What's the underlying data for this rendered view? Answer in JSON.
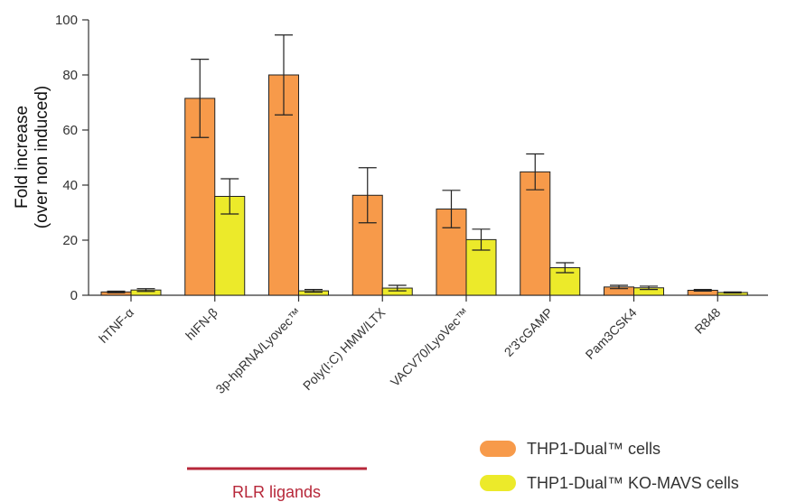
{
  "chart_data": {
    "type": "bar",
    "ylabel_line1": "Fold increase",
    "ylabel_line2": "(over non induced)",
    "xlabel": "",
    "ylim": [
      0,
      100
    ],
    "yticks": [
      0,
      20,
      40,
      60,
      80,
      100
    ],
    "grid": false,
    "legend_position": "bottom-right",
    "categories": [
      "hTNF-α",
      "hIFN-β",
      "3p-hpRNA/Lyovec™",
      "Poly(I:C) HMW/LTX",
      "VACV70/LyoVec™",
      "2'3'cGAMP",
      "Pam3CSK4",
      "R848"
    ],
    "highlighted_categories": [
      2,
      3
    ],
    "series": [
      {
        "name": "THP1-Dual™ cells",
        "color": "#f79a4a",
        "values": [
          1.2,
          71.5,
          80.0,
          36.3,
          31.3,
          44.8,
          3.0,
          1.8
        ],
        "error": [
          0.3,
          14.2,
          14.5,
          10.0,
          6.8,
          6.5,
          0.6,
          0.3
        ]
      },
      {
        "name": "THP1-Dual™ KO-MAVS cells",
        "color": "#ecea2a",
        "values": [
          1.9,
          35.9,
          1.6,
          2.6,
          20.2,
          10.0,
          2.7,
          1.0
        ],
        "error": [
          0.5,
          6.4,
          0.5,
          1.0,
          3.8,
          1.8,
          0.6,
          0.2
        ]
      }
    ],
    "annotation": {
      "label": "RLR ligands",
      "color": "#b7283a"
    },
    "text_color_normal": "#333333"
  }
}
